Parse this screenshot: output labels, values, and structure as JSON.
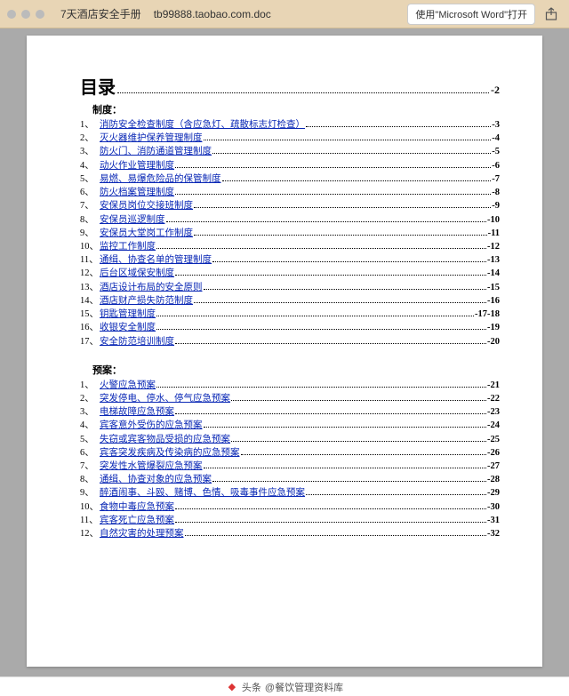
{
  "topbar": {
    "tab1": "7天酒店安全手册",
    "tab2": "tb99888.taobao.com.doc",
    "open_button": "使用\"Microsoft Word\"打开"
  },
  "toc": {
    "title": "目录",
    "title_page": "-2",
    "section1": "制度：",
    "section2": "预案：",
    "items1": [
      {
        "n": "1、",
        "t": "消防安全检查制度（含应急灯、疏散标志灯检查）",
        "p": "-3"
      },
      {
        "n": "2、",
        "t": "灭火器维护保养管理制度",
        "p": "-4"
      },
      {
        "n": "3、",
        "t": "防火门、消防通道管理制度",
        "p": "-5"
      },
      {
        "n": "4、",
        "t": "动火作业管理制度",
        "p": "-6"
      },
      {
        "n": "5、",
        "t": "易燃、易爆危险品的保管制度",
        "p": "-7"
      },
      {
        "n": "6、",
        "t": "防火档案管理制度",
        "p": "-8"
      },
      {
        "n": "7、",
        "t": "安保员岗位交接班制度",
        "p": "-9"
      },
      {
        "n": "8、",
        "t": "安保员巡逻制度",
        "p": "-10"
      },
      {
        "n": "9、",
        "t": "安保员大堂岗工作制度",
        "p": "-11"
      },
      {
        "n": "10、",
        "t": "监控工作制度",
        "p": "-12"
      },
      {
        "n": "11、",
        "t": "通缉、协查名单的管理制度",
        "p": "-13"
      },
      {
        "n": "12、",
        "t": "后台区域保安制度",
        "p": "-14"
      },
      {
        "n": "13、",
        "t": "酒店设计布局的安全原则",
        "p": "-15"
      },
      {
        "n": "14、",
        "t": "酒店财产损失防范制度",
        "p": "-16"
      },
      {
        "n": "15、",
        "t": "钥匙管理制度",
        "p": "-17-18"
      },
      {
        "n": "16、",
        "t": "收银安全制度",
        "p": "-19"
      },
      {
        "n": "17、",
        "t": "安全防范培训制度",
        "p": "-20"
      }
    ],
    "items2": [
      {
        "n": "1、",
        "t": "火警应急预案",
        "p": "-21"
      },
      {
        "n": "2、",
        "t": "突发停电、停水、停气应急预案",
        "p": "-22"
      },
      {
        "n": "3、",
        "t": "电梯故障应急预案",
        "p": "-23"
      },
      {
        "n": "4、",
        "t": "宾客意外受伤的应急预案",
        "p": "-24"
      },
      {
        "n": "5、",
        "t": "失窃或宾客物品受损的应急预案",
        "p": "-25"
      },
      {
        "n": "6、",
        "t": "宾客突发疾病及传染病的应急预案",
        "p": "-26"
      },
      {
        "n": "7、",
        "t": "突发性水管爆裂应急预案",
        "p": "-27"
      },
      {
        "n": "8、",
        "t": "通缉、协查对象的应急预案",
        "p": "-28"
      },
      {
        "n": "9、",
        "t": "醉酒闹事、斗殴、赌博、色情、吸毒事件应急预案",
        "p": "-29"
      },
      {
        "n": "10、",
        "t": "食物中毒应急预案",
        "p": "-30"
      },
      {
        "n": "11、",
        "t": "宾客死亡应急预案",
        "p": "-31"
      },
      {
        "n": "12、",
        "t": "自然灾害的处理预案",
        "p": "-32"
      }
    ]
  },
  "footer": {
    "prefix": "头条",
    "handle": "@餐饮管理资料库"
  }
}
